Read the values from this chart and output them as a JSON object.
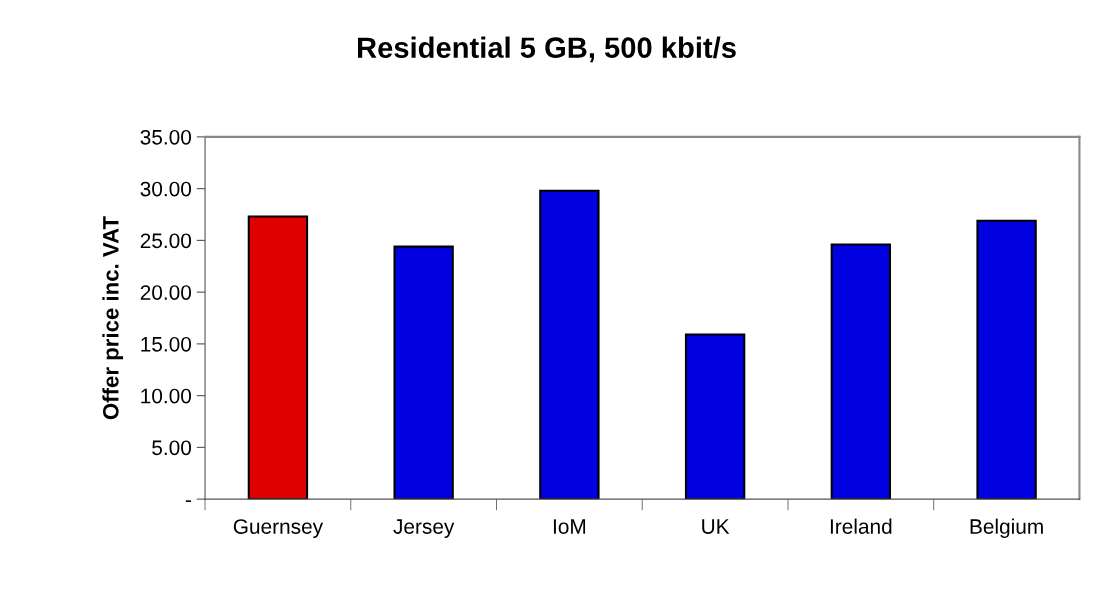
{
  "chart_data": {
    "type": "bar",
    "title": "Residential 5 GB, 500 kbit/s",
    "ylabel": "Offer price inc. VAT",
    "categories": [
      "Guernsey",
      "Jersey",
      "IoM",
      "UK",
      "Ireland",
      "Belgium"
    ],
    "values": [
      27.3,
      24.4,
      29.8,
      15.9,
      24.6,
      26.9
    ],
    "colors": [
      "#e00000",
      "#0000e0",
      "#0000e0",
      "#0000e0",
      "#0000e0",
      "#0000e0"
    ],
    "ylim": [
      0,
      35
    ],
    "yticks": [
      {
        "value": 0,
        "label": "-"
      },
      {
        "value": 5,
        "label": "5.00"
      },
      {
        "value": 10,
        "label": "10.00"
      },
      {
        "value": 15,
        "label": "15.00"
      },
      {
        "value": 20,
        "label": "20.00"
      },
      {
        "value": 25,
        "label": "25.00"
      },
      {
        "value": 30,
        "label": "30.00"
      },
      {
        "value": 35,
        "label": "35.00"
      }
    ],
    "grid": false,
    "legend": false
  }
}
